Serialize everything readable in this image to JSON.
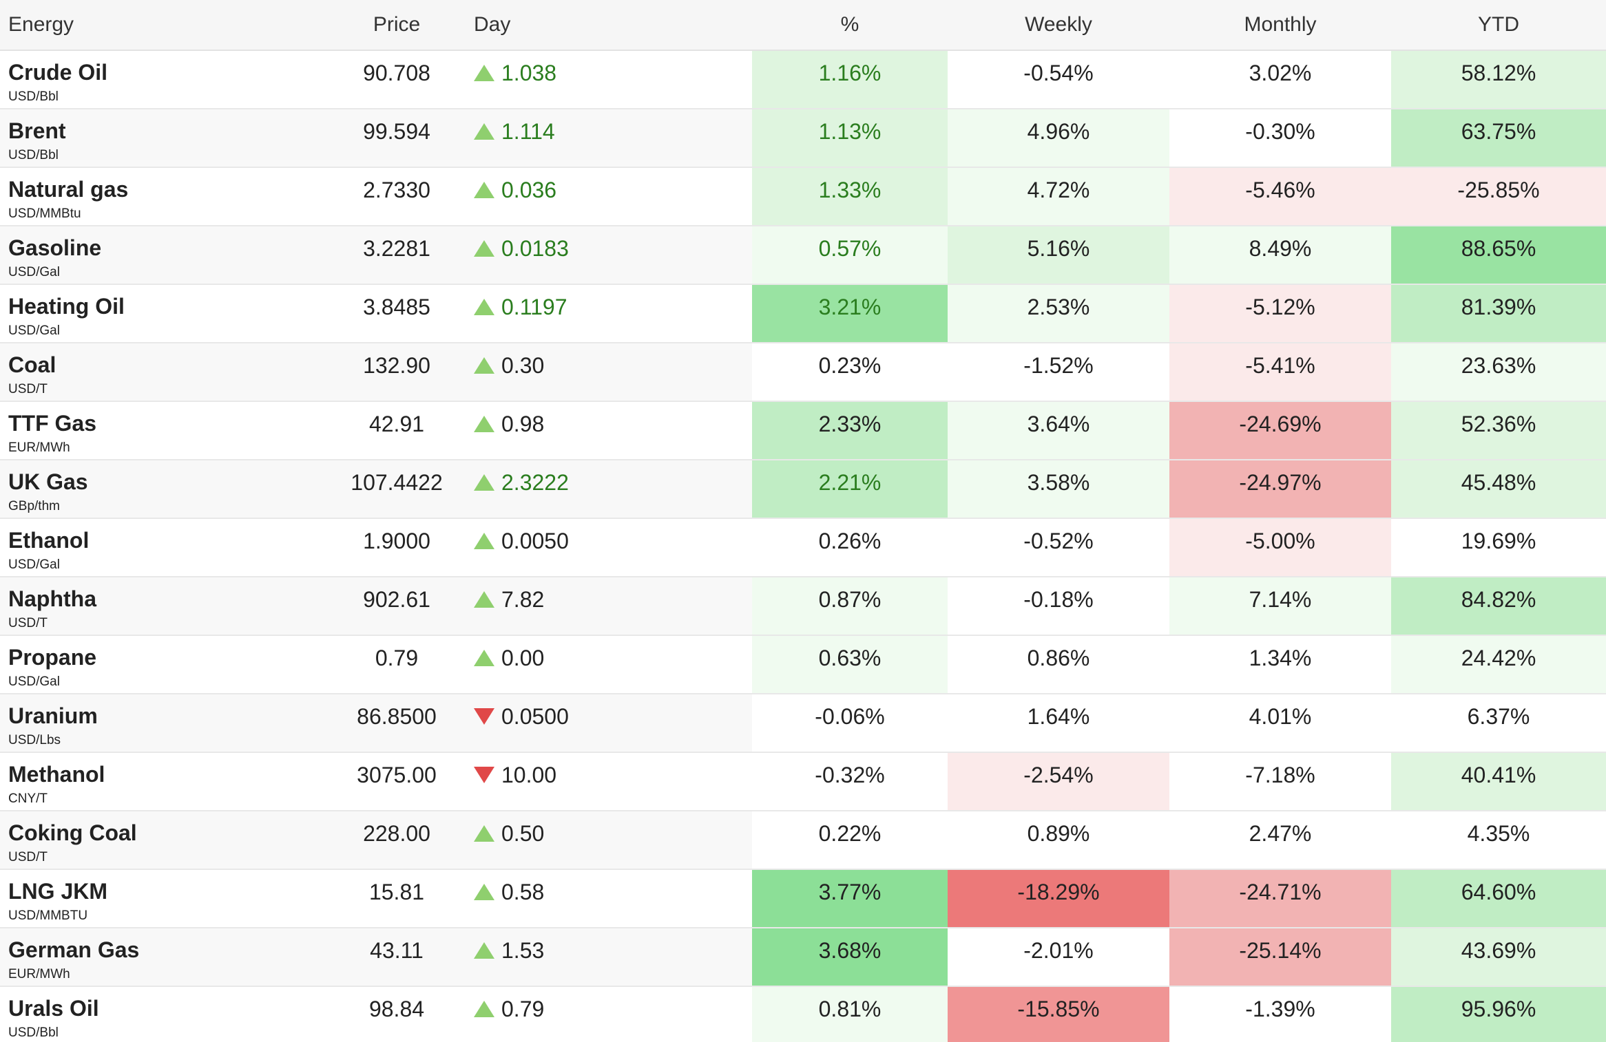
{
  "headers": {
    "name": "Energy",
    "price": "Price",
    "day": "Day",
    "pct": "%",
    "weekly": "Weekly",
    "monthly": "Monthly",
    "ytd": "YTD"
  },
  "colors": {
    "none": "#ffffff",
    "g1": "#f0fbf0",
    "g2": "#dff5df",
    "g3": "#c0edc4",
    "g4": "#99e3a2",
    "g5": "#8cdf97",
    "r1": "#fbeaea",
    "r3": "#f2b3b3",
    "r4": "#f09595",
    "r5": "#ec7979",
    "arrow_up": "#8fcf6e",
    "arrow_down": "#e04848",
    "green_text": "#2a7d1e"
  },
  "rows": [
    {
      "name": "Crude Oil",
      "unit": "USD/Bbl",
      "price": "90.708",
      "day": "1.038",
      "dir": "up",
      "dayGreen": true,
      "pct": "1.16%",
      "pctC": "g2",
      "weekly": "-0.54%",
      "weeklyC": "none",
      "monthly": "3.02%",
      "monthlyC": "none",
      "ytd": "58.12%",
      "ytdC": "g2"
    },
    {
      "name": "Brent",
      "unit": "USD/Bbl",
      "price": "99.594",
      "day": "1.114",
      "dir": "up",
      "dayGreen": true,
      "pct": "1.13%",
      "pctC": "g2",
      "weekly": "4.96%",
      "weeklyC": "g1",
      "monthly": "-0.30%",
      "monthlyC": "none",
      "ytd": "63.75%",
      "ytdC": "g3"
    },
    {
      "name": "Natural gas",
      "unit": "USD/MMBtu",
      "price": "2.7330",
      "day": "0.036",
      "dir": "up",
      "dayGreen": true,
      "pct": "1.33%",
      "pctC": "g2",
      "weekly": "4.72%",
      "weeklyC": "g1",
      "monthly": "-5.46%",
      "monthlyC": "r1",
      "ytd": "-25.85%",
      "ytdC": "r1"
    },
    {
      "name": "Gasoline",
      "unit": "USD/Gal",
      "price": "3.2281",
      "day": "0.0183",
      "dir": "up",
      "dayGreen": true,
      "pct": "0.57%",
      "pctC": "g1",
      "weekly": "5.16%",
      "weeklyC": "g2",
      "monthly": "8.49%",
      "monthlyC": "g1",
      "ytd": "88.65%",
      "ytdC": "g4"
    },
    {
      "name": "Heating Oil",
      "unit": "USD/Gal",
      "price": "3.8485",
      "day": "0.1197",
      "dir": "up",
      "dayGreen": true,
      "pct": "3.21%",
      "pctC": "g4",
      "weekly": "2.53%",
      "weeklyC": "g1",
      "monthly": "-5.12%",
      "monthlyC": "r1",
      "ytd": "81.39%",
      "ytdC": "g3"
    },
    {
      "name": "Coal",
      "unit": "USD/T",
      "price": "132.90",
      "day": "0.30",
      "dir": "up",
      "dayGreen": false,
      "pct": "0.23%",
      "pctC": "none",
      "weekly": "-1.52%",
      "weeklyC": "none",
      "monthly": "-5.41%",
      "monthlyC": "r1",
      "ytd": "23.63%",
      "ytdC": "g1"
    },
    {
      "name": "TTF Gas",
      "unit": "EUR/MWh",
      "price": "42.91",
      "day": "0.98",
      "dir": "up",
      "dayGreen": false,
      "pct": "2.33%",
      "pctC": "g3",
      "weekly": "3.64%",
      "weeklyC": "g1",
      "monthly": "-24.69%",
      "monthlyC": "r3",
      "ytd": "52.36%",
      "ytdC": "g2"
    },
    {
      "name": "UK Gas",
      "unit": "GBp/thm",
      "price": "107.4422",
      "day": "2.3222",
      "dir": "up",
      "dayGreen": true,
      "pct": "2.21%",
      "pctC": "g3",
      "weekly": "3.58%",
      "weeklyC": "g1",
      "monthly": "-24.97%",
      "monthlyC": "r3",
      "ytd": "45.48%",
      "ytdC": "g2"
    },
    {
      "name": "Ethanol",
      "unit": "USD/Gal",
      "price": "1.9000",
      "day": "0.0050",
      "dir": "up",
      "dayGreen": false,
      "pct": "0.26%",
      "pctC": "none",
      "weekly": "-0.52%",
      "weeklyC": "none",
      "monthly": "-5.00%",
      "monthlyC": "r1",
      "ytd": "19.69%",
      "ytdC": "none"
    },
    {
      "name": "Naphtha",
      "unit": "USD/T",
      "price": "902.61",
      "day": "7.82",
      "dir": "up",
      "dayGreen": false,
      "pct": "0.87%",
      "pctC": "g1",
      "weekly": "-0.18%",
      "weeklyC": "none",
      "monthly": "7.14%",
      "monthlyC": "g1",
      "ytd": "84.82%",
      "ytdC": "g3"
    },
    {
      "name": "Propane",
      "unit": "USD/Gal",
      "price": "0.79",
      "day": "0.00",
      "dir": "up",
      "dayGreen": false,
      "pct": "0.63%",
      "pctC": "g1",
      "weekly": "0.86%",
      "weeklyC": "none",
      "monthly": "1.34%",
      "monthlyC": "none",
      "ytd": "24.42%",
      "ytdC": "g1"
    },
    {
      "name": "Uranium",
      "unit": "USD/Lbs",
      "price": "86.8500",
      "day": "0.0500",
      "dir": "down",
      "dayGreen": false,
      "pct": "-0.06%",
      "pctC": "none",
      "weekly": "1.64%",
      "weeklyC": "none",
      "monthly": "4.01%",
      "monthlyC": "none",
      "ytd": "6.37%",
      "ytdC": "none"
    },
    {
      "name": "Methanol",
      "unit": "CNY/T",
      "price": "3075.00",
      "day": "10.00",
      "dir": "down",
      "dayGreen": false,
      "pct": "-0.32%",
      "pctC": "none",
      "weekly": "-2.54%",
      "weeklyC": "r1",
      "monthly": "-7.18%",
      "monthlyC": "none",
      "ytd": "40.41%",
      "ytdC": "g2"
    },
    {
      "name": "Coking Coal",
      "unit": "USD/T",
      "price": "228.00",
      "day": "0.50",
      "dir": "up",
      "dayGreen": false,
      "pct": "0.22%",
      "pctC": "none",
      "weekly": "0.89%",
      "weeklyC": "none",
      "monthly": "2.47%",
      "monthlyC": "none",
      "ytd": "4.35%",
      "ytdC": "none"
    },
    {
      "name": "LNG JKM",
      "unit": "USD/MMBTU",
      "price": "15.81",
      "day": "0.58",
      "dir": "up",
      "dayGreen": false,
      "pct": "3.77%",
      "pctC": "g5",
      "weekly": "-18.29%",
      "weeklyC": "r5",
      "monthly": "-24.71%",
      "monthlyC": "r3",
      "ytd": "64.60%",
      "ytdC": "g3"
    },
    {
      "name": "German Gas",
      "unit": "EUR/MWh",
      "price": "43.11",
      "day": "1.53",
      "dir": "up",
      "dayGreen": false,
      "pct": "3.68%",
      "pctC": "g5",
      "weekly": "-2.01%",
      "weeklyC": "none",
      "monthly": "-25.14%",
      "monthlyC": "r3",
      "ytd": "43.69%",
      "ytdC": "g2"
    },
    {
      "name": "Urals Oil",
      "unit": "USD/Bbl",
      "price": "98.84",
      "day": "0.79",
      "dir": "up",
      "dayGreen": false,
      "pct": "0.81%",
      "pctC": "g1",
      "weekly": "-15.85%",
      "weeklyC": "r4",
      "monthly": "-1.39%",
      "monthlyC": "none",
      "ytd": "95.96%",
      "ytdC": "g3"
    }
  ]
}
